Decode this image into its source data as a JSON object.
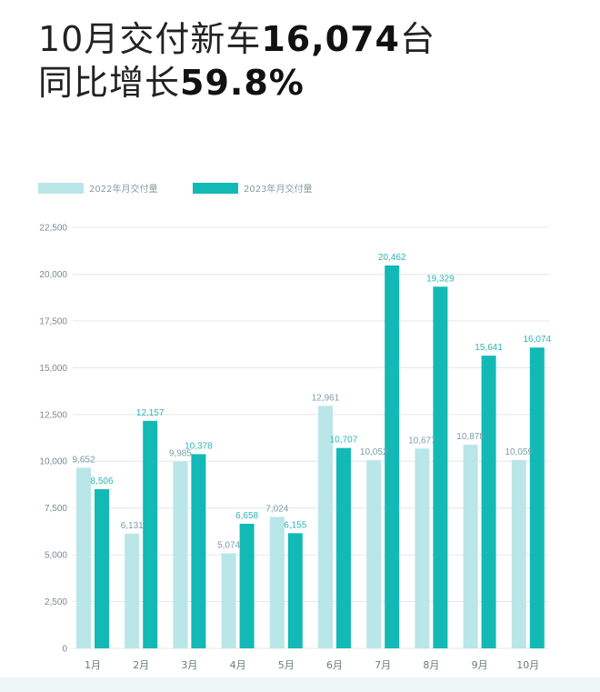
{
  "headline": {
    "line1_prefix": "10月交付新车",
    "line1_value": "16,074",
    "line1_suffix": "台",
    "line2_prefix": "同比增长",
    "line2_value": "59.8%"
  },
  "colors": {
    "series_2022": "#b9e6e8",
    "series_2023": "#13b9b5",
    "label_2022": "#7a9ea4",
    "label_2023": "#2bb6b1",
    "gridline": "#e3e8ea"
  },
  "chart_data": {
    "type": "bar",
    "categories": [
      "1月",
      "2月",
      "3月",
      "4月",
      "5月",
      "6月",
      "7月",
      "8月",
      "9月",
      "10月"
    ],
    "series": [
      {
        "name": "2022年月交付量",
        "values": [
          9652,
          6131,
          9985,
          5074,
          7024,
          12961,
          10052,
          10677,
          10878,
          10059
        ],
        "labels": [
          "9,652",
          "6,131",
          "9,985",
          "5,074",
          "7,024",
          "12,961",
          "10,052",
          "10,677",
          "10,878",
          "10,059"
        ]
      },
      {
        "name": "2023年月交付量",
        "values": [
          8506,
          12157,
          10378,
          6658,
          6155,
          10707,
          20462,
          19329,
          15641,
          16074
        ],
        "labels": [
          "8,506",
          "12,157",
          "10,378",
          "6,658",
          "6,155",
          "10,707",
          "20,462",
          "19,329",
          "15,641",
          "16,074"
        ]
      }
    ],
    "yticks": [
      0,
      2500,
      5000,
      7500,
      10000,
      12500,
      15000,
      17500,
      20000,
      22500
    ],
    "ytick_labels": [
      "0",
      "2,500",
      "5,000",
      "7,500",
      "10,000",
      "12,500",
      "15,000",
      "17,500",
      "20,000",
      "22,500"
    ],
    "ylim": [
      0,
      22500
    ],
    "grid": true,
    "legend": "top-left"
  }
}
